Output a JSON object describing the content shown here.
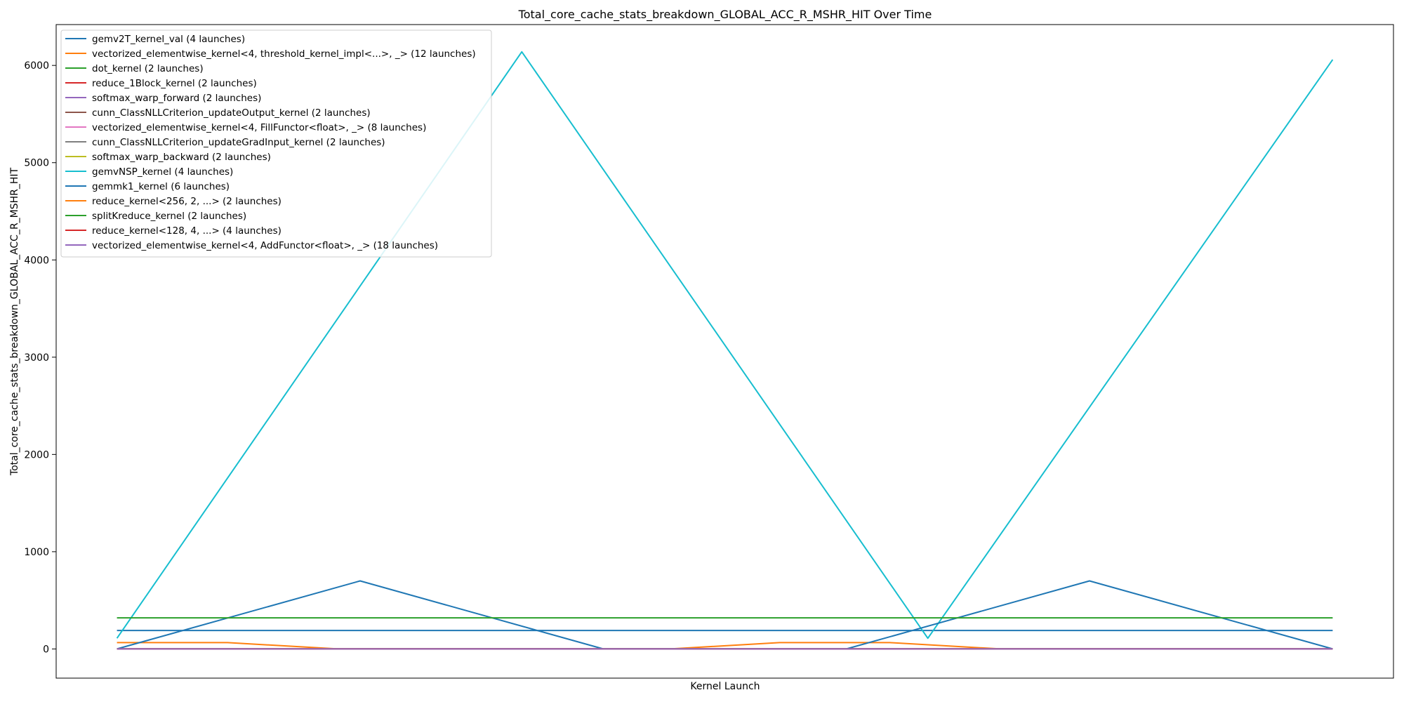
{
  "chart_data": {
    "type": "line",
    "title": "Total_core_cache_stats_breakdown_GLOBAL_ACC_R_MSHR_HIT Over Time",
    "xlabel": "Kernel Launch",
    "ylabel": "Total_core_cache_stats_breakdown_GLOBAL_ACC_R_MSHR_HIT",
    "ylim": [
      -300,
      6420
    ],
    "xlim": [
      -0.5,
      10.5
    ],
    "yticks": [
      0,
      1000,
      2000,
      3000,
      4000,
      5000,
      6000
    ],
    "show_xticks": false,
    "grid": false,
    "legend_position": "upper-left",
    "series": [
      {
        "name": "gemv2T_kernel_val (4 launches)",
        "color": "#1f77b4",
        "x": [
          0,
          3.33,
          6.67,
          10
        ],
        "y": [
          190,
          190,
          190,
          190
        ]
      },
      {
        "name": "vectorized_elementwise_kernel<4, threshold_kernel_impl<...>, _> (12 launches)",
        "color": "#ff7f0e",
        "x": [
          0,
          0.91,
          1.82,
          2.73,
          3.64,
          4.55,
          5.45,
          6.36,
          7.27,
          8.18,
          9.09,
          10
        ],
        "y": [
          65,
          65,
          0,
          0,
          0,
          0,
          65,
          65,
          0,
          0,
          0,
          0
        ]
      },
      {
        "name": "dot_kernel (2 launches)",
        "color": "#2ca02c",
        "x": [
          0,
          10
        ],
        "y": [
          0,
          0
        ]
      },
      {
        "name": "reduce_1Block_kernel (2 launches)",
        "color": "#d62728",
        "x": [
          0,
          10
        ],
        "y": [
          0,
          0
        ]
      },
      {
        "name": "softmax_warp_forward (2 launches)",
        "color": "#9467bd",
        "x": [
          0,
          10
        ],
        "y": [
          0,
          0
        ]
      },
      {
        "name": "cunn_ClassNLLCriterion_updateOutput_kernel (2 launches)",
        "color": "#8c564b",
        "x": [
          0,
          10
        ],
        "y": [
          0,
          0
        ]
      },
      {
        "name": "vectorized_elementwise_kernel<4, FillFunctor<float>, _> (8 launches)",
        "color": "#e377c2",
        "x": [
          0,
          1.43,
          2.86,
          4.29,
          5.71,
          7.14,
          8.57,
          10
        ],
        "y": [
          0,
          0,
          0,
          0,
          0,
          0,
          0,
          0
        ]
      },
      {
        "name": "cunn_ClassNLLCriterion_updateGradInput_kernel (2 launches)",
        "color": "#7f7f7f",
        "x": [
          0,
          10
        ],
        "y": [
          0,
          0
        ]
      },
      {
        "name": "softmax_warp_backward (2 launches)",
        "color": "#bcbd22",
        "x": [
          0,
          10
        ],
        "y": [
          0,
          0
        ]
      },
      {
        "name": "gemvNSP_kernel (4 launches)",
        "color": "#17becf",
        "x": [
          0,
          3.33,
          6.67,
          10
        ],
        "y": [
          110,
          6140,
          110,
          6060
        ]
      },
      {
        "name": "gemmk1_kernel (6 launches)",
        "color": "#1f77b4",
        "x": [
          0,
          2,
          4,
          6,
          8,
          10
        ],
        "y": [
          0,
          700,
          0,
          0,
          700,
          0
        ]
      },
      {
        "name": "reduce_kernel<256, 2, ...> (2 launches)",
        "color": "#ff7f0e",
        "x": [
          0,
          10
        ],
        "y": [
          0,
          0
        ]
      },
      {
        "name": "splitKreduce_kernel (2 launches)",
        "color": "#2ca02c",
        "x": [
          0,
          10
        ],
        "y": [
          320,
          320
        ]
      },
      {
        "name": "reduce_kernel<128, 4, ...> (4 launches)",
        "color": "#d62728",
        "x": [
          0,
          3.33,
          6.67,
          10
        ],
        "y": [
          0,
          0,
          0,
          0
        ]
      },
      {
        "name": "vectorized_elementwise_kernel<4, AddFunctor<float>, _> (18 launches)",
        "color": "#9467bd",
        "x": [
          0,
          0.59,
          1.18,
          1.76,
          2.35,
          2.94,
          3.53,
          4.12,
          4.71,
          5.29,
          5.88,
          6.47,
          7.06,
          7.65,
          8.24,
          8.82,
          9.41,
          10
        ],
        "y": [
          0,
          0,
          0,
          0,
          0,
          0,
          0,
          0,
          0,
          0,
          0,
          0,
          0,
          0,
          0,
          0,
          0,
          0
        ]
      }
    ]
  }
}
